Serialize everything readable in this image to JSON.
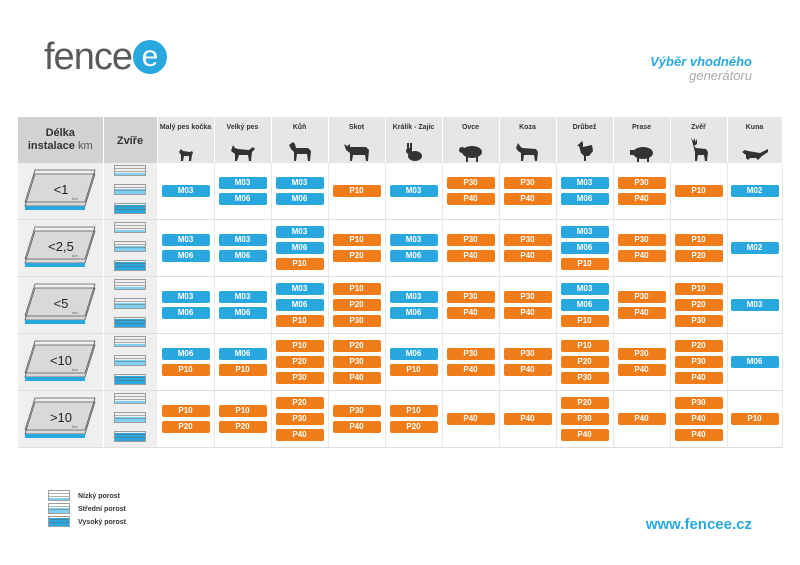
{
  "brand": {
    "logo_text": "fence",
    "logo_letter": "e",
    "accent": "#29a8e0",
    "orange": "#f07d1a"
  },
  "title": {
    "line1": "Výběr vhodného",
    "line2": "generátoru"
  },
  "header": {
    "length_label_1": "Délka",
    "length_label_2": "instalace",
    "length_unit": "km",
    "animal_label": "Zvíře"
  },
  "animals": [
    {
      "name": "Malý pes kočka",
      "icon": "small-dog-icon"
    },
    {
      "name": "Velký pes",
      "icon": "big-dog-icon"
    },
    {
      "name": "Kůň",
      "icon": "horse-icon"
    },
    {
      "name": "Skot",
      "icon": "cattle-icon"
    },
    {
      "name": "Králík - Zajíc",
      "icon": "rabbit-icon"
    },
    {
      "name": "Ovce",
      "icon": "sheep-icon"
    },
    {
      "name": "Koza",
      "icon": "goat-icon"
    },
    {
      "name": "Drůbež",
      "icon": "poultry-icon"
    },
    {
      "name": "Prase",
      "icon": "pig-icon"
    },
    {
      "name": "Zvěř",
      "icon": "deer-icon"
    },
    {
      "name": "Kuna",
      "icon": "marten-icon"
    }
  ],
  "rows": [
    {
      "length": "<1",
      "unit": "km",
      "cells": [
        [
          "M03"
        ],
        [
          "M03",
          "M06"
        ],
        [
          "M03",
          "M06"
        ],
        [
          "P10"
        ],
        [
          "M03"
        ],
        [
          "P30",
          "P40"
        ],
        [
          "P30",
          "P40"
        ],
        [
          "M03",
          "M06"
        ],
        [
          "P30",
          "P40"
        ],
        [
          "P10"
        ],
        [
          "M02"
        ]
      ]
    },
    {
      "length": "<2,5",
      "unit": "km",
      "cells": [
        [
          "M03",
          "M06"
        ],
        [
          "M03",
          "M06"
        ],
        [
          "M03",
          "M06",
          "P10"
        ],
        [
          "P10",
          "P20"
        ],
        [
          "M03",
          "M06"
        ],
        [
          "P30",
          "P40"
        ],
        [
          "P30",
          "P40"
        ],
        [
          "M03",
          "M06",
          "P10"
        ],
        [
          "P30",
          "P40"
        ],
        [
          "P10",
          "P20"
        ],
        [
          "M02"
        ]
      ]
    },
    {
      "length": "<5",
      "unit": "km",
      "cells": [
        [
          "M03",
          "M06"
        ],
        [
          "M03",
          "M06"
        ],
        [
          "M03",
          "M06",
          "P10"
        ],
        [
          "P10",
          "P20",
          "P30"
        ],
        [
          "M03",
          "M06"
        ],
        [
          "P30",
          "P40"
        ],
        [
          "P30",
          "P40"
        ],
        [
          "M03",
          "M06",
          "P10"
        ],
        [
          "P30",
          "P40"
        ],
        [
          "P10",
          "P20",
          "P30"
        ],
        [
          "M03"
        ]
      ]
    },
    {
      "length": "<10",
      "unit": "km",
      "cells": [
        [
          "M06",
          "P10"
        ],
        [
          "M06",
          "P10"
        ],
        [
          "P10",
          "P20",
          "P30"
        ],
        [
          "P20",
          "P30",
          "P40"
        ],
        [
          "M06",
          "P10"
        ],
        [
          "P30",
          "P40"
        ],
        [
          "P30",
          "P40"
        ],
        [
          "P10",
          "P20",
          "P30"
        ],
        [
          "P30",
          "P40"
        ],
        [
          "P20",
          "P30",
          "P40"
        ],
        [
          "M06"
        ]
      ]
    },
    {
      "length": ">10",
      "unit": "km",
      "cells": [
        [
          "P10",
          "P20"
        ],
        [
          "P10",
          "P20"
        ],
        [
          "P20",
          "P30",
          "P40"
        ],
        [
          "P30",
          "P40"
        ],
        [
          "P10",
          "P20"
        ],
        [
          "P40"
        ],
        [
          "P40"
        ],
        [
          "P20",
          "P30",
          "P40"
        ],
        [
          "P40"
        ],
        [
          "P30",
          "P40",
          "P40"
        ],
        [
          "P10"
        ]
      ]
    }
  ],
  "legend": [
    {
      "label": "Nízký porost",
      "icon": "low-vegetation-fence-icon"
    },
    {
      "label": "Střední porost",
      "icon": "medium-vegetation-fence-icon"
    },
    {
      "label": "Vysoký porost",
      "icon": "high-vegetation-fence-icon"
    }
  ],
  "website": "www.fencee.cz"
}
